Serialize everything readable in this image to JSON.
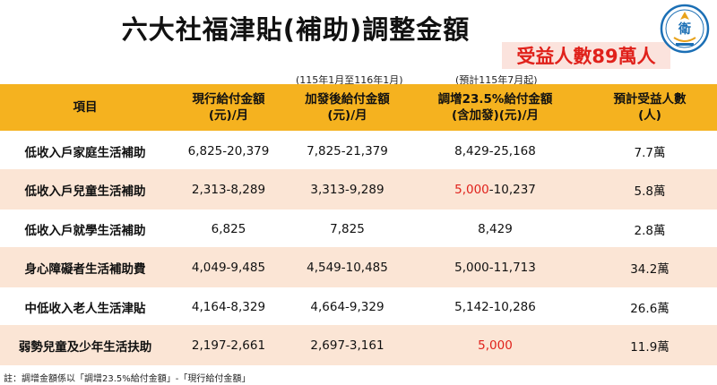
{
  "title": "六大社福津貼(補助)調整金額",
  "badge": "受益人數89萬人",
  "notes": {
    "period_note": "(115年1月至116年1月)",
    "estimate_note": "(預計115年7月起)"
  },
  "logo": {
    "icon": "ministry-logo-icon",
    "color": "#1b6fb5"
  },
  "table": {
    "columns": [
      [
        "項目"
      ],
      [
        "現行給付金額",
        "(元)/月"
      ],
      [
        "加發後給付金額",
        "(元)/月"
      ],
      [
        "調增23.5%給付金額",
        "(含加發)(元)/月"
      ],
      [
        "預計受益人數",
        "(人)"
      ]
    ],
    "rows": [
      {
        "item": "低收入戶家庭生活補助",
        "current": "6,825-20,379",
        "added": "7,825-21,379",
        "adj_a": "",
        "adj_b": "8,429-25,168",
        "people": "7.7萬"
      },
      {
        "item": "低收入戶兒童生活補助",
        "current": "2,313-8,289",
        "added": "3,313-9,289",
        "adj_a": "5,000",
        "adj_b": "-10,237",
        "people": "5.8萬"
      },
      {
        "item": "低收入戶就學生活補助",
        "current": "6,825",
        "added": "7,825",
        "adj_a": "",
        "adj_b": "8,429",
        "people": "2.8萬"
      },
      {
        "item": "身心障礙者生活補助費",
        "current": "4,049-9,485",
        "added": "4,549-10,485",
        "adj_a": "",
        "adj_b": "5,000-11,713",
        "people": "34.2萬"
      },
      {
        "item": "中低收入老人生活津貼",
        "current": "4,164-8,329",
        "added": "4,664-9,329",
        "adj_a": "",
        "adj_b": "5,142-10,286",
        "people": "26.6萬"
      },
      {
        "item": "弱勢兒童及少年生活扶助",
        "current": "2,197-2,661",
        "added": "2,697-3,161",
        "adj_a": "5,000",
        "adj_b": "",
        "people": "11.9萬"
      }
    ]
  },
  "footnote": "註：調增金額係以「調增23.5%給付金額」-「現行給付金額」",
  "colors": {
    "header_bg": "#f5b21f",
    "alt_row_bg": "#fbe5d5",
    "accent_red": "#e0211b",
    "badge_bg": "#fbe3dd"
  }
}
